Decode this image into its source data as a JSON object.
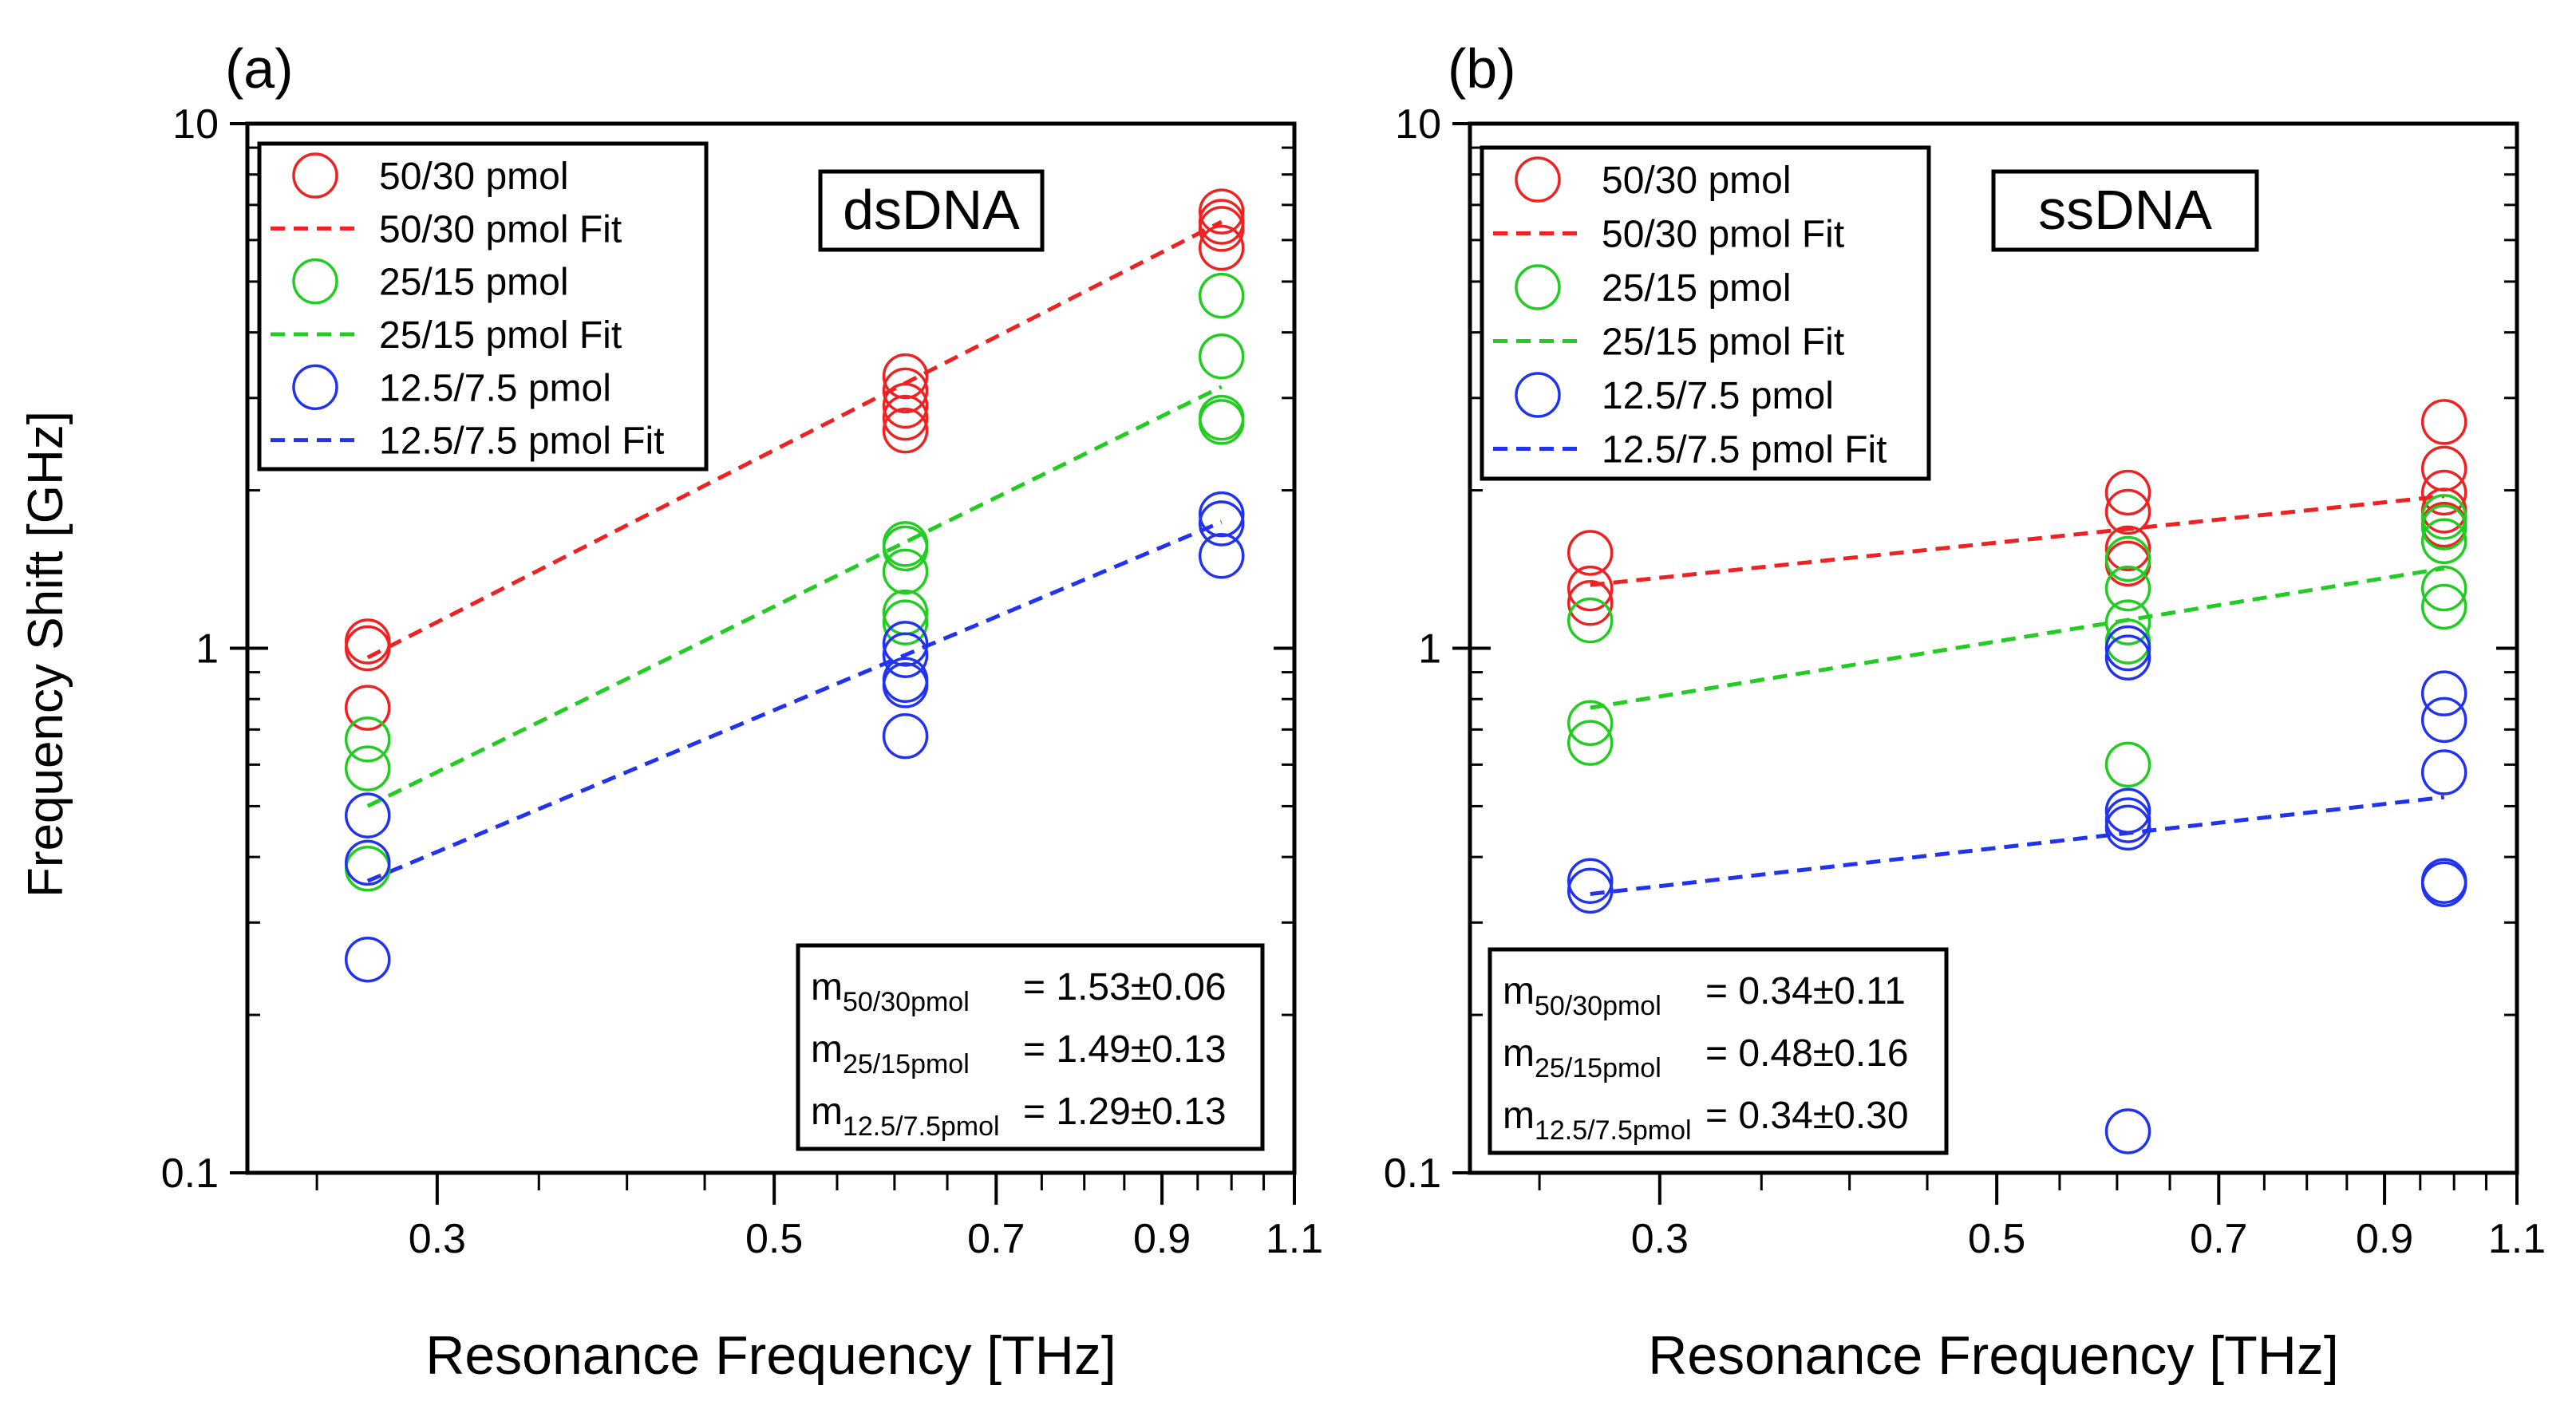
{
  "figure": {
    "y_axis_label": "Frequency Shift [GHz]"
  },
  "chart_data": [
    {
      "type": "scatter",
      "panel_label": "(a)",
      "annotation": "dsDNA",
      "xlabel": "Resonance Frequency [THz]",
      "ylabel": "Frequency Shift [GHz]",
      "x_scale": "log",
      "y_scale": "log",
      "xlim": [
        0.225,
        1.1
      ],
      "ylim": [
        0.1,
        10
      ],
      "x_ticks": [
        {
          "value": 0.3,
          "label": "0.3"
        },
        {
          "value": 0.5,
          "label": "0.5"
        },
        {
          "value": 0.7,
          "label": "0.7"
        },
        {
          "value": 0.9,
          "label": "0.9"
        },
        {
          "value": 1.1,
          "label": "1.1"
        }
      ],
      "y_ticks": [
        {
          "value": 0.1,
          "label": "0.1"
        },
        {
          "value": 1,
          "label": "1"
        },
        {
          "value": 10,
          "label": "10"
        }
      ],
      "legend_position": "top-left",
      "series": [
        {
          "name": "50/30 pmol",
          "fit_name": "50/30 pmol Fit",
          "color": "#ee2222",
          "points": [
            [
              0.27,
              1.03
            ],
            [
              0.27,
              1.0
            ],
            [
              0.27,
              0.77
            ],
            [
              0.61,
              3.3
            ],
            [
              0.61,
              3.1
            ],
            [
              0.61,
              2.9
            ],
            [
              0.61,
              2.75
            ],
            [
              0.61,
              2.6
            ],
            [
              0.985,
              6.8
            ],
            [
              0.985,
              6.5
            ],
            [
              0.985,
              6.3
            ],
            [
              0.985,
              5.8
            ]
          ],
          "fit": [
            [
              0.27,
              0.96
            ],
            [
              0.985,
              6.5
            ]
          ]
        },
        {
          "name": "25/15 pmol",
          "fit_name": "25/15 pmol Fit",
          "color": "#22cc22",
          "points": [
            [
              0.27,
              0.67
            ],
            [
              0.27,
              0.59
            ],
            [
              0.27,
              0.38
            ],
            [
              0.61,
              1.58
            ],
            [
              0.61,
              1.55
            ],
            [
              0.61,
              1.4
            ],
            [
              0.61,
              1.17
            ],
            [
              0.61,
              1.12
            ],
            [
              0.985,
              4.7
            ],
            [
              0.985,
              3.6
            ],
            [
              0.985,
              2.75
            ],
            [
              0.985,
              2.7
            ]
          ],
          "fit": [
            [
              0.27,
              0.5
            ],
            [
              0.985,
              3.15
            ]
          ]
        },
        {
          "name": "12.5/7.5 pmol",
          "fit_name": "12.5/7.5 pmol Fit",
          "color": "#2233ee",
          "points": [
            [
              0.27,
              0.48
            ],
            [
              0.27,
              0.39
            ],
            [
              0.27,
              0.255
            ],
            [
              0.61,
              1.02
            ],
            [
              0.61,
              0.97
            ],
            [
              0.61,
              0.87
            ],
            [
              0.61,
              0.85
            ],
            [
              0.61,
              0.68
            ],
            [
              0.985,
              1.8
            ],
            [
              0.985,
              1.73
            ],
            [
              0.985,
              1.5
            ]
          ],
          "fit": [
            [
              0.27,
              0.36
            ],
            [
              0.985,
              1.74
            ]
          ]
        }
      ],
      "slopes": [
        {
          "label": "m",
          "sub": "50/30pmol",
          "value": "= 1.53±0.06"
        },
        {
          "label": "m",
          "sub": "25/15pmol",
          "value": "= 1.49±0.13"
        },
        {
          "label": "m",
          "sub": "12.5/7.5pmol",
          "value": "= 1.29±0.13"
        }
      ]
    },
    {
      "type": "scatter",
      "panel_label": "(b)",
      "annotation": "ssDNA",
      "xlabel": "Resonance Frequency [THz]",
      "ylabel": "Frequency Shift [GHz]",
      "x_scale": "log",
      "y_scale": "log",
      "xlim": [
        0.225,
        1.1
      ],
      "ylim": [
        0.1,
        10
      ],
      "x_ticks": [
        {
          "value": 0.3,
          "label": "0.3"
        },
        {
          "value": 0.5,
          "label": "0.5"
        },
        {
          "value": 0.7,
          "label": "0.7"
        },
        {
          "value": 0.9,
          "label": "0.9"
        },
        {
          "value": 1.1,
          "label": "1.1"
        }
      ],
      "y_ticks": [
        {
          "value": 0.1,
          "label": "0.1"
        },
        {
          "value": 1,
          "label": "1"
        },
        {
          "value": 10,
          "label": "10"
        }
      ],
      "legend_position": "top-left",
      "series": [
        {
          "name": "50/30 pmol",
          "fit_name": "50/30 pmol Fit",
          "color": "#ee2222",
          "points": [
            [
              0.27,
              1.52
            ],
            [
              0.27,
              1.3
            ],
            [
              0.27,
              1.22
            ],
            [
              0.61,
              1.98
            ],
            [
              0.61,
              1.82
            ],
            [
              0.61,
              1.55
            ],
            [
              0.61,
              1.45
            ],
            [
              0.985,
              2.7
            ],
            [
              0.985,
              2.2
            ],
            [
              0.985,
              1.98
            ],
            [
              0.985,
              1.83
            ],
            [
              0.985,
              1.72
            ]
          ],
          "fit": [
            [
              0.27,
              1.32
            ],
            [
              0.985,
              1.95
            ]
          ]
        },
        {
          "name": "25/15 pmol",
          "fit_name": "25/15 pmol Fit",
          "color": "#22cc22",
          "points": [
            [
              0.27,
              1.13
            ],
            [
              0.27,
              0.72
            ],
            [
              0.27,
              0.66
            ],
            [
              0.61,
              1.48
            ],
            [
              0.61,
              1.3
            ],
            [
              0.61,
              1.12
            ],
            [
              0.61,
              1.03
            ],
            [
              0.61,
              0.6
            ],
            [
              0.985,
              1.78
            ],
            [
              0.985,
              1.7
            ],
            [
              0.985,
              1.6
            ],
            [
              0.985,
              1.3
            ],
            [
              0.985,
              1.2
            ]
          ],
          "fit": [
            [
              0.27,
              0.77
            ],
            [
              0.985,
              1.42
            ]
          ]
        },
        {
          "name": "12.5/7.5 pmol",
          "fit_name": "12.5/7.5 pmol Fit",
          "color": "#2233ee",
          "points": [
            [
              0.27,
              0.36
            ],
            [
              0.27,
              0.345
            ],
            [
              0.61,
              1.0
            ],
            [
              0.61,
              0.96
            ],
            [
              0.61,
              0.49
            ],
            [
              0.61,
              0.47
            ],
            [
              0.61,
              0.455
            ],
            [
              0.61,
              0.12
            ],
            [
              0.985,
              0.82
            ],
            [
              0.985,
              0.73
            ],
            [
              0.985,
              0.58
            ],
            [
              0.985,
              0.36
            ],
            [
              0.985,
              0.355
            ]
          ],
          "fit": [
            [
              0.27,
              0.34
            ],
            [
              0.985,
              0.52
            ]
          ]
        }
      ],
      "slopes": [
        {
          "label": "m",
          "sub": "50/30pmol",
          "value": "= 0.34±0.11"
        },
        {
          "label": "m",
          "sub": "25/15pmol",
          "value": "= 0.48±0.16"
        },
        {
          "label": "m",
          "sub": "12.5/7.5pmol",
          "value": "= 0.34±0.30"
        }
      ]
    }
  ]
}
